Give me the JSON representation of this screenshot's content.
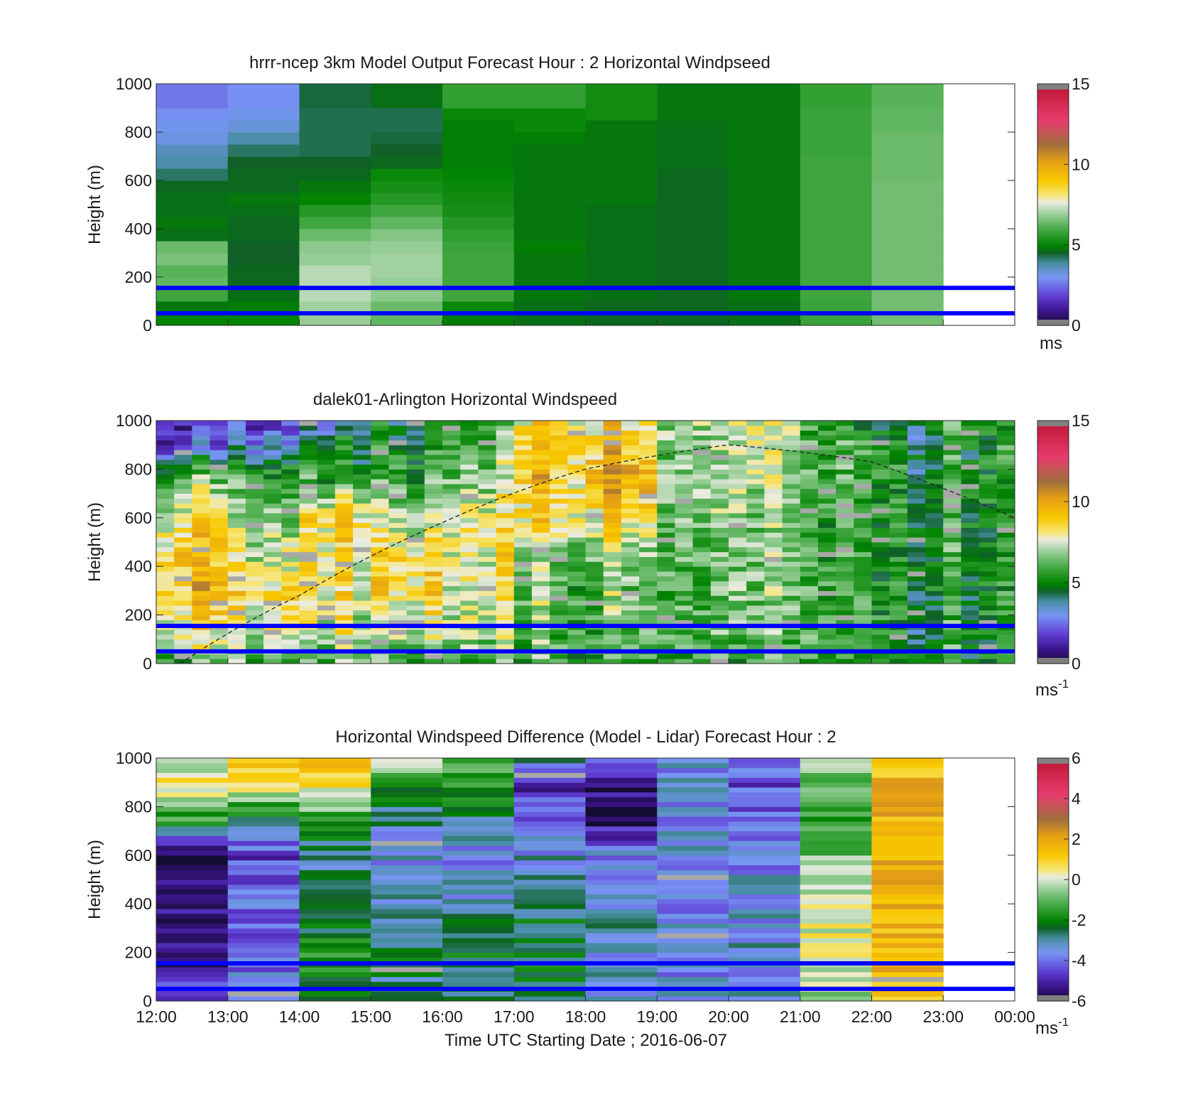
{
  "figure": {
    "panel1_title": "hrrr-ncep 3km Model Output   Forecast Hour : 2 Horizontal Windpseed",
    "panel2_title": "dalek01-Arlington  Horizontal Windspeed",
    "panel3_title": "Horizontal Windspeed Difference (Model - Lidar) Forecast Hour : 2",
    "ylabel": "Height (m)",
    "xlabel": "Time UTC  Starting Date ; 2016-06-07",
    "cb1_unit": "ms",
    "cb_unit_base": "ms",
    "cb_unit_exp": "-1"
  },
  "chart_data": [
    {
      "type": "heatmap",
      "title": "hrrr-ncep 3km Model Output   Forecast Hour : 2 Horizontal Windpseed",
      "ylabel": "Height (m)",
      "xlim": [
        "12:00",
        "00:00"
      ],
      "ylim": [
        0,
        1000
      ],
      "yticks": [
        0,
        200,
        400,
        600,
        800,
        1000
      ],
      "xticks": [
        "12:00",
        "13:00",
        "14:00",
        "15:00",
        "16:00",
        "17:00",
        "18:00",
        "19:00",
        "20:00",
        "21:00",
        "22:00",
        "23:00",
        "00:00"
      ],
      "colorbar": {
        "range": [
          0,
          15
        ],
        "ticks": [
          0,
          5,
          10,
          15
        ],
        "unit": "ms"
      },
      "hours": [
        "12:00",
        "13:00",
        "14:00",
        "15:00",
        "16:00",
        "17:00",
        "18:00",
        "19:00",
        "20:00",
        "21:00",
        "22:00"
      ],
      "heights_m": [
        25,
        75,
        125,
        175,
        225,
        275,
        325,
        375,
        425,
        475,
        525,
        575,
        625,
        675,
        725,
        775,
        825,
        875,
        925,
        975
      ],
      "reference_lines_m": [
        50,
        155
      ],
      "values_ms": [
        [
          5.0,
          4.8,
          5.9,
          6.3,
          6.2,
          6.6,
          6.4,
          4.7,
          4.8,
          4.7,
          4.7,
          4.6,
          4.2,
          3.8,
          3.6,
          3.2,
          3.1,
          2.9,
          2.6,
          2.6
        ],
        [
          5.0,
          4.9,
          4.7,
          4.6,
          4.6,
          4.5,
          4.5,
          4.6,
          4.6,
          4.7,
          4.8,
          4.6,
          4.6,
          4.5,
          4.2,
          3.8,
          3.3,
          3.1,
          2.9,
          2.9
        ],
        [
          6.9,
          7.0,
          7.2,
          7.2,
          7.2,
          6.9,
          6.8,
          6.4,
          5.9,
          5.5,
          5.0,
          4.8,
          4.6,
          4.5,
          4.3,
          4.3,
          4.3,
          4.3,
          4.4,
          4.4
        ],
        [
          6.3,
          6.4,
          6.8,
          6.9,
          7.0,
          7.0,
          6.9,
          6.7,
          6.3,
          5.9,
          5.5,
          5.3,
          5.1,
          4.6,
          4.5,
          4.4,
          4.3,
          4.3,
          4.7,
          4.7
        ],
        [
          4.9,
          5.1,
          5.9,
          5.9,
          5.9,
          5.9,
          5.8,
          5.7,
          5.5,
          5.3,
          5.2,
          5.1,
          5.0,
          4.9,
          4.9,
          4.9,
          4.9,
          5.1,
          5.7,
          5.7
        ],
        [
          4.7,
          4.7,
          4.8,
          4.8,
          4.8,
          4.8,
          4.9,
          4.8,
          4.8,
          4.8,
          4.8,
          4.8,
          4.8,
          4.8,
          4.8,
          4.9,
          5.1,
          5.1,
          5.7,
          5.7
        ],
        [
          4.6,
          4.6,
          4.7,
          4.7,
          4.7,
          4.7,
          4.7,
          4.7,
          4.7,
          4.7,
          4.8,
          4.8,
          4.8,
          4.8,
          4.8,
          4.8,
          4.8,
          5.2,
          5.2,
          5.2
        ],
        [
          4.6,
          4.6,
          4.6,
          4.6,
          4.6,
          4.6,
          4.6,
          4.6,
          4.6,
          4.6,
          4.6,
          4.6,
          4.6,
          4.7,
          4.7,
          4.7,
          4.7,
          4.8,
          4.8,
          4.8
        ],
        [
          4.7,
          4.7,
          4.8,
          4.8,
          4.8,
          4.8,
          4.8,
          4.8,
          4.8,
          4.8,
          4.8,
          4.8,
          4.8,
          4.8,
          4.8,
          4.8,
          4.8,
          4.8,
          4.8,
          4.8
        ],
        [
          5.8,
          5.8,
          5.9,
          5.9,
          5.9,
          5.9,
          5.9,
          5.9,
          5.9,
          5.9,
          5.9,
          5.9,
          5.9,
          5.9,
          5.8,
          5.8,
          5.8,
          5.8,
          5.7,
          5.7
        ],
        [
          6.5,
          6.5,
          6.5,
          6.5,
          6.5,
          6.5,
          6.5,
          6.5,
          6.5,
          6.5,
          6.5,
          6.5,
          6.4,
          6.4,
          6.4,
          6.4,
          6.3,
          6.3,
          6.2,
          6.2
        ]
      ]
    },
    {
      "type": "heatmap",
      "title": "dalek01-Arlington  Horizontal Windspeed",
      "ylabel": "Height (m)",
      "xlim": [
        "12:00",
        "00:00"
      ],
      "ylim": [
        0,
        1000
      ],
      "yticks": [
        0,
        200,
        400,
        600,
        800,
        1000
      ],
      "colorbar": {
        "range": [
          0,
          15
        ],
        "ticks": [
          0,
          5,
          10,
          15
        ],
        "unit": "ms-1"
      },
      "hours": [
        "12:00",
        "13:00",
        "14:00",
        "15:00",
        "16:00",
        "17:00",
        "18:00",
        "19:00",
        "20:00",
        "21:00",
        "22:00",
        "23:00"
      ],
      "profile_heights_m": [
        0,
        150,
        300,
        450,
        600,
        750,
        900,
        1000
      ],
      "approx_hourly_mean_windspeed_ms": [
        [
          6.0,
          8.5,
          9.2,
          9.3,
          8.0,
          6.5,
          2.5,
          1.5
        ],
        [
          6.0,
          8.0,
          8.5,
          7.5,
          6.5,
          6.0,
          3.5,
          2.0
        ],
        [
          6.5,
          7.5,
          8.0,
          8.3,
          8.5,
          6.0,
          4.5,
          3.5
        ],
        [
          6.0,
          7.5,
          8.5,
          8.5,
          7.0,
          6.0,
          5.0,
          4.5
        ],
        [
          6.0,
          7.5,
          7.5,
          8.0,
          8.0,
          7.0,
          6.5,
          5.5
        ],
        [
          6.0,
          6.5,
          6.5,
          6.5,
          8.5,
          9.0,
          9.0,
          8.0
        ],
        [
          6.0,
          6.5,
          6.5,
          7.0,
          8.5,
          10.0,
          9.0,
          8.5
        ],
        [
          6.0,
          6.5,
          6.5,
          6.5,
          7.0,
          7.0,
          7.0,
          7.5
        ],
        [
          6.0,
          7.0,
          7.0,
          7.0,
          7.0,
          7.5,
          8.0,
          8.0
        ],
        [
          5.0,
          5.5,
          5.5,
          5.5,
          5.5,
          5.5,
          5.5,
          5.0
        ],
        [
          5.0,
          5.0,
          5.0,
          5.0,
          5.0,
          5.0,
          4.8,
          4.5
        ],
        [
          5.5,
          5.5,
          5.5,
          5.5,
          5.5,
          5.5,
          5.5,
          5.5
        ]
      ],
      "reference_lines_m": [
        50,
        155
      ],
      "dashed_curve": {
        "x": [
          "12:20",
          "14:00",
          "16:00",
          "18:00",
          "20:00",
          "22:00",
          "00:00"
        ],
        "y_m": [
          0,
          280,
          580,
          800,
          900,
          830,
          600
        ]
      }
    },
    {
      "type": "heatmap",
      "title": "Horizontal Windspeed Difference (Model - Lidar) Forecast Hour : 2",
      "ylabel": "Height (m)",
      "xlabel": "Time UTC  Starting Date ; 2016-06-07",
      "xlim": [
        "12:00",
        "00:00"
      ],
      "ylim": [
        0,
        1000
      ],
      "yticks": [
        0,
        200,
        400,
        600,
        800,
        1000
      ],
      "xticks": [
        "12:00",
        "13:00",
        "14:00",
        "15:00",
        "16:00",
        "17:00",
        "18:00",
        "19:00",
        "20:00",
        "21:00",
        "22:00",
        "23:00",
        "00:00"
      ],
      "colorbar": {
        "range": [
          -6,
          6
        ],
        "ticks": [
          -6,
          -4,
          -2,
          0,
          2,
          4,
          6
        ],
        "unit": "ms-1"
      },
      "hours": [
        "12:00",
        "13:00",
        "14:00",
        "15:00",
        "16:00",
        "17:00",
        "18:00",
        "19:00",
        "20:00",
        "21:00",
        "22:00"
      ],
      "profile_heights_m": [
        0,
        150,
        300,
        450,
        600,
        750,
        900,
        1000
      ],
      "approx_hourly_mean_difference_ms": [
        [
          -3.5,
          -4.5,
          -5.0,
          -5.0,
          -5.3,
          -1.0,
          1.0,
          0.0
        ],
        [
          -3.0,
          -4.0,
          -4.0,
          -4.0,
          -4.5,
          -2.5,
          0.5,
          1.5
        ],
        [
          -2.5,
          -2.0,
          -2.5,
          -2.5,
          -3.5,
          -2.0,
          0.5,
          1.5
        ],
        [
          -2.5,
          -2.0,
          -2.0,
          -3.0,
          -3.0,
          -2.5,
          -1.5,
          0.5
        ],
        [
          -3.0,
          -2.5,
          -3.0,
          -3.5,
          -4.0,
          -3.0,
          -2.0,
          -1.0
        ],
        [
          -3.0,
          -2.5,
          -2.5,
          -3.0,
          -3.5,
          -4.5,
          -5.0,
          -3.0
        ],
        [
          -3.0,
          -3.0,
          -3.0,
          -3.0,
          -3.5,
          -5.5,
          -5.0,
          -3.0
        ],
        [
          -3.0,
          -3.0,
          -3.0,
          -3.0,
          -3.0,
          -3.0,
          -3.0,
          -3.0
        ],
        [
          -3.0,
          -3.0,
          -3.0,
          -3.0,
          -3.5,
          -3.5,
          -4.0,
          -3.5
        ],
        [
          -0.5,
          0.0,
          0.0,
          0.0,
          -1.0,
          -1.5,
          -1.5,
          -0.5
        ],
        [
          1.5,
          1.5,
          1.5,
          1.5,
          1.5,
          1.5,
          1.5,
          0.5
        ]
      ],
      "reference_lines_m": [
        50,
        155
      ]
    }
  ]
}
